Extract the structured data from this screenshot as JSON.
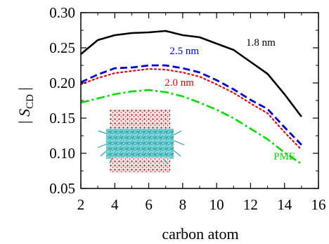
{
  "chart_data": {
    "type": "line",
    "xlabel": "carbon atom",
    "ylabel_main": "S",
    "ylabel_sub": "CD",
    "xlim": [
      2,
      16
    ],
    "ylim": [
      0.05,
      0.3
    ],
    "xticks": [
      2,
      4,
      6,
      8,
      10,
      12,
      14,
      16
    ],
    "yticks": [
      0.05,
      0.1,
      0.15,
      0.2,
      0.25,
      0.3
    ],
    "ytick_labels": [
      "0.05",
      "0.10",
      "0.15",
      "0.20",
      "0.25",
      "0.30"
    ],
    "grid": false,
    "series": [
      {
        "name": "1.8 nm",
        "color": "#000000",
        "dash": "solid",
        "x": [
          2,
          3,
          4,
          5,
          6,
          7,
          8,
          9,
          10,
          11,
          12,
          13,
          14,
          15
        ],
        "values": [
          0.241,
          0.261,
          0.268,
          0.271,
          0.272,
          0.274,
          0.268,
          0.265,
          0.256,
          0.247,
          0.23,
          0.213,
          0.184,
          0.152
        ],
        "label_x": 12.6,
        "label_y": 0.253
      },
      {
        "name": "2.5 nm",
        "color": "#0000dd",
        "dash": "dashed",
        "x": [
          2,
          3,
          4,
          5,
          6,
          7,
          8,
          9,
          10,
          11,
          12,
          13,
          14,
          15
        ],
        "values": [
          0.201,
          0.212,
          0.221,
          0.222,
          0.225,
          0.225,
          0.221,
          0.215,
          0.204,
          0.191,
          0.176,
          0.163,
          0.137,
          0.112
        ],
        "label_x": 8.1,
        "label_y": 0.241
      },
      {
        "name": "2.0 nm",
        "color": "#ee0000",
        "dash": "dotted",
        "x": [
          2,
          3,
          4,
          5,
          6,
          7,
          8,
          9,
          10,
          11,
          12,
          13,
          14,
          15
        ],
        "values": [
          0.198,
          0.207,
          0.214,
          0.217,
          0.22,
          0.219,
          0.215,
          0.209,
          0.198,
          0.186,
          0.171,
          0.157,
          0.13,
          0.105
        ],
        "label_x": 7.8,
        "label_y": 0.196
      },
      {
        "name": "PME",
        "color": "#00dd00",
        "dash": "dashdot",
        "x": [
          2,
          3,
          4,
          5,
          6,
          7,
          8,
          9,
          10,
          11,
          12,
          13,
          14,
          15
        ],
        "values": [
          0.172,
          0.178,
          0.184,
          0.188,
          0.19,
          0.187,
          0.181,
          0.172,
          0.162,
          0.15,
          0.135,
          0.12,
          0.101,
          0.085
        ],
        "label_x": 14.0,
        "label_y": 0.091
      }
    ]
  }
}
